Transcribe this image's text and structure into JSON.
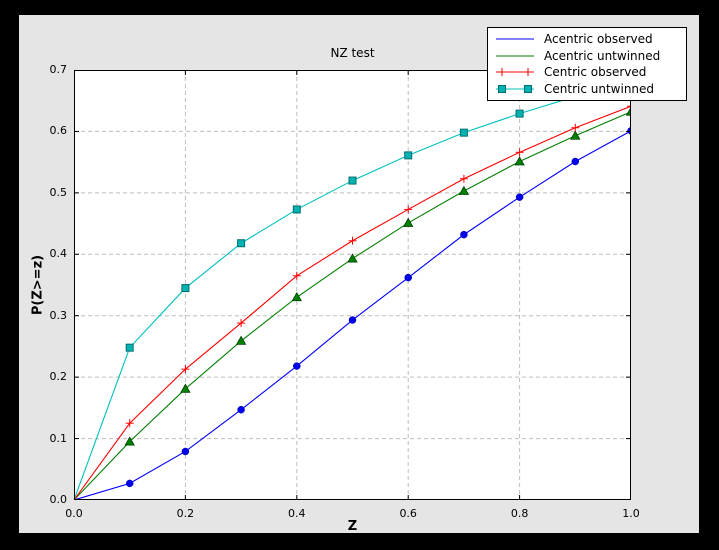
{
  "colors": {
    "window_frame": "#000000",
    "figure_background": "#e5e5e5",
    "plot_background": "#ffffff",
    "spine": "#000000",
    "text": "#000000"
  },
  "chart_data": {
    "type": "line",
    "title": "NZ test",
    "xlabel": "Z",
    "ylabel": "P(Z>=z)",
    "xlim": [
      0.0,
      1.0
    ],
    "ylim": [
      0.0,
      0.7
    ],
    "x_ticks": [
      "0.0",
      "0.2",
      "0.4",
      "0.6",
      "0.8",
      "1.0"
    ],
    "y_ticks": [
      "0.0",
      "0.1",
      "0.2",
      "0.3",
      "0.4",
      "0.5",
      "0.6",
      "0.7"
    ],
    "grid": true,
    "grid_color": "#bdbdbd",
    "legend_position": "upper right",
    "x": [
      0.0,
      0.1,
      0.2,
      0.3,
      0.4,
      0.5,
      0.6,
      0.7,
      0.8,
      0.9,
      1.0
    ],
    "series": [
      {
        "name": "Acentric observed",
        "color": "#0000ff",
        "marker": "circle",
        "marker_fill": "#0000ee",
        "marker_edge": "#0000a0",
        "legend_marker": false,
        "values": [
          0.0,
          0.027,
          0.079,
          0.147,
          0.218,
          0.293,
          0.362,
          0.432,
          0.493,
          0.551,
          0.601
        ]
      },
      {
        "name": "Acentric untwinned",
        "color": "#008000",
        "marker": "triangle",
        "marker_fill": "#008000",
        "marker_edge": "#004000",
        "legend_marker": false,
        "values": [
          0.0,
          0.095,
          0.181,
          0.259,
          0.33,
          0.393,
          0.451,
          0.503,
          0.551,
          0.593,
          0.632
        ]
      },
      {
        "name": "Centric observed",
        "color": "#ff0000",
        "marker": "plus",
        "marker_fill": "#ff0000",
        "marker_edge": "#ff0000",
        "legend_marker": true,
        "values": [
          0.0,
          0.125,
          0.213,
          0.288,
          0.365,
          0.422,
          0.473,
          0.523,
          0.566,
          0.606,
          0.641
        ]
      },
      {
        "name": "Centric untwinned",
        "color": "#00bfbf",
        "marker": "square",
        "marker_fill": "#00b2b2",
        "marker_edge": "#006e6e",
        "legend_marker": true,
        "values": [
          0.0,
          0.248,
          0.345,
          0.418,
          0.473,
          0.52,
          0.561,
          0.598,
          0.629,
          0.657,
          0.683
        ]
      }
    ]
  }
}
